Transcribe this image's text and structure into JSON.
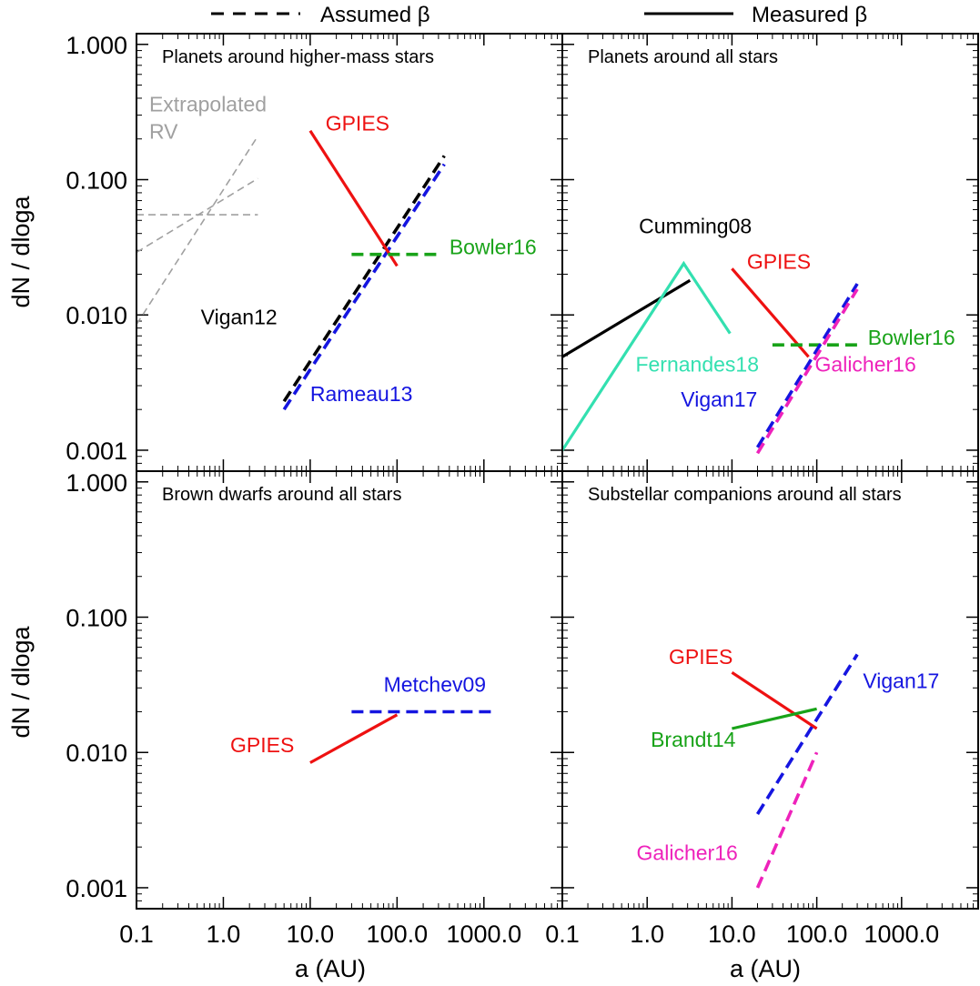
{
  "legend": [
    {
      "label": "Assumed β",
      "style": "dashed"
    },
    {
      "label": "Measured β",
      "style": "solid"
    }
  ],
  "axes": {
    "xlabel": "a (AU)",
    "ylabel": "dN / dloga",
    "xscale": "log",
    "yscale": "log",
    "xlim": [
      0.1,
      8000
    ],
    "ylim": [
      0.0007,
      1.2
    ],
    "xticks": [
      "0.1",
      "1.0",
      "10.0",
      "100.0",
      "1000.0"
    ],
    "xtick_values": [
      0.1,
      1,
      10,
      100,
      1000
    ],
    "yticks": [
      "1.000",
      "0.100",
      "0.010",
      "0.001"
    ],
    "ytick_values": [
      1,
      0.1,
      0.01,
      0.001
    ]
  },
  "colors": {
    "black": "#000000",
    "red": "#ee1111",
    "blue": "#1515e0",
    "green": "#19a319",
    "magenta": "#ee22bb",
    "teal": "#33e0b0",
    "gray": "#a0a0a0"
  },
  "chart_data": [
    {
      "type": "line",
      "title": "Planets around higher-mass stars",
      "xscale": "log",
      "yscale": "log",
      "series": [
        {
          "name": "",
          "color": "gray",
          "dash": "thin-dashed",
          "x": [
            0.1,
            2.5
          ],
          "y": [
            0.0085,
            0.21
          ]
        },
        {
          "name": "",
          "color": "gray",
          "dash": "thin-dashed",
          "x": [
            0.1,
            2.5
          ],
          "y": [
            0.029,
            0.102
          ]
        },
        {
          "name": "",
          "color": "gray",
          "dash": "thin-dashed",
          "x": [
            0.1,
            2.5
          ],
          "y": [
            0.055,
            0.055
          ]
        },
        {
          "name": "",
          "color": "black",
          "dash": "dashed",
          "x": [
            5,
            350
          ],
          "y": [
            0.0023,
            0.15
          ]
        },
        {
          "name": "",
          "color": "blue",
          "dash": "dashed",
          "x": [
            5,
            350
          ],
          "y": [
            0.002,
            0.13
          ]
        },
        {
          "name": "",
          "color": "red",
          "dash": "solid",
          "x": [
            10,
            100
          ],
          "y": [
            0.23,
            0.023
          ]
        },
        {
          "name": "",
          "color": "green",
          "dash": "dashed",
          "x": [
            30,
            300
          ],
          "y": [
            0.028,
            0.028
          ]
        }
      ],
      "labels": [
        {
          "text": "Extrapolated",
          "color": "gray",
          "x": 0.14,
          "y": 0.32
        },
        {
          "text": "RV",
          "color": "gray",
          "x": 0.14,
          "y": 0.2
        },
        {
          "text": "GPIES",
          "color": "red",
          "x": 15,
          "y": 0.23
        },
        {
          "text": "Bowler16",
          "color": "green",
          "x": 400,
          "y": 0.028
        },
        {
          "text": "Vigan12",
          "color": "black",
          "x": 0.55,
          "y": 0.0085
        },
        {
          "text": "Rameau13",
          "color": "blue",
          "x": 10,
          "y": 0.0023
        }
      ]
    },
    {
      "type": "line",
      "title": "Planets around all stars",
      "xscale": "log",
      "yscale": "log",
      "series": [
        {
          "name": "",
          "color": "black",
          "dash": "solid",
          "x": [
            0.1,
            3.2
          ],
          "y": [
            0.0049,
            0.018
          ]
        },
        {
          "name": "",
          "color": "teal",
          "dash": "solid",
          "x": [
            0.1,
            2.7,
            9.5
          ],
          "y": [
            0.001,
            0.024,
            0.0073
          ]
        },
        {
          "name": "",
          "color": "red",
          "dash": "solid",
          "x": [
            10,
            80
          ],
          "y": [
            0.022,
            0.0049
          ]
        },
        {
          "name": "",
          "color": "green",
          "dash": "dashed",
          "x": [
            30,
            300
          ],
          "y": [
            0.006,
            0.006
          ]
        },
        {
          "name": "",
          "color": "blue",
          "dash": "dashed",
          "x": [
            20,
            300
          ],
          "y": [
            0.00105,
            0.017
          ]
        },
        {
          "name": "",
          "color": "magenta",
          "dash": "dashed",
          "x": [
            20,
            300
          ],
          "y": [
            0.00095,
            0.0155
          ]
        }
      ],
      "labels": [
        {
          "text": "Cumming08",
          "color": "black",
          "x": 0.8,
          "y": 0.04
        },
        {
          "text": "GPIES",
          "color": "red",
          "x": 15,
          "y": 0.022
        },
        {
          "text": "Bowler16",
          "color": "green",
          "x": 400,
          "y": 0.006
        },
        {
          "text": "Fernandes18",
          "color": "teal",
          "x": 0.73,
          "y": 0.0038
        },
        {
          "text": "Galicher16",
          "color": "magenta",
          "x": 95,
          "y": 0.0038
        },
        {
          "text": "Vigan17",
          "color": "blue",
          "x": 2.5,
          "y": 0.0021
        }
      ]
    },
    {
      "type": "line",
      "title": "Brown dwarfs around all stars",
      "xscale": "log",
      "yscale": "log",
      "series": [
        {
          "name": "",
          "color": "red",
          "dash": "solid",
          "x": [
            10,
            100
          ],
          "y": [
            0.0084,
            0.019
          ]
        },
        {
          "name": "",
          "color": "blue",
          "dash": "dashed",
          "x": [
            30,
            1400
          ],
          "y": [
            0.02,
            0.02
          ]
        }
      ],
      "labels": [
        {
          "text": "Metchev09",
          "color": "blue",
          "x": 70,
          "y": 0.028
        },
        {
          "text": "GPIES",
          "color": "red",
          "x": 1.2,
          "y": 0.01
        }
      ]
    },
    {
      "type": "line",
      "title": "Substellar companions around all stars",
      "xscale": "log",
      "yscale": "log",
      "series": [
        {
          "name": "",
          "color": "red",
          "dash": "solid",
          "x": [
            10,
            100
          ],
          "y": [
            0.039,
            0.015
          ]
        },
        {
          "name": "",
          "color": "green",
          "dash": "solid",
          "x": [
            10,
            100
          ],
          "y": [
            0.015,
            0.021
          ]
        },
        {
          "name": "",
          "color": "blue",
          "dash": "dashed",
          "x": [
            20,
            300
          ],
          "y": [
            0.0035,
            0.053
          ]
        },
        {
          "name": "",
          "color": "magenta",
          "dash": "dashed",
          "x": [
            20,
            100
          ],
          "y": [
            0.001,
            0.01
          ]
        }
      ],
      "labels": [
        {
          "text": "GPIES",
          "color": "red",
          "x": 1.8,
          "y": 0.045
        },
        {
          "text": "Vigan17",
          "color": "blue",
          "x": 350,
          "y": 0.03
        },
        {
          "text": "Brandt14",
          "color": "green",
          "x": 1.1,
          "y": 0.011
        },
        {
          "text": "Galicher16",
          "color": "magenta",
          "x": 0.75,
          "y": 0.0016
        }
      ]
    }
  ]
}
